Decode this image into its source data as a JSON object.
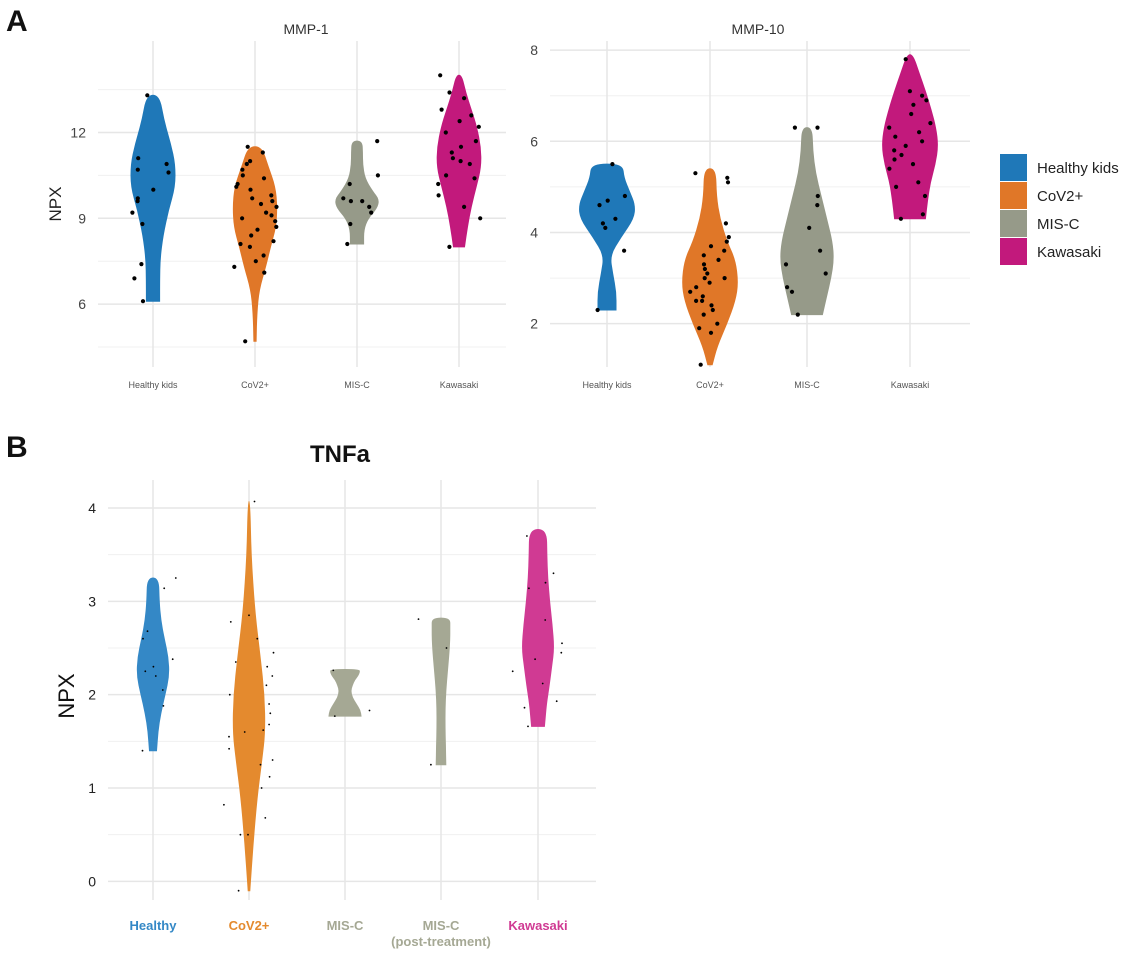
{
  "colors": {
    "healthy": "#1f78b8",
    "covid": "#e07728",
    "misc": "#969a89",
    "kawasaki": "#c2197c",
    "healthy_b": "#3488c6",
    "covid_b": "#e48a2e",
    "misc_b": "#a5a894",
    "kawasaki_b": "#d03a93"
  },
  "panels": {
    "a": "A",
    "b": "B"
  },
  "legend": {
    "entries": [
      {
        "label": "Healthy kids",
        "color_key": "healthy"
      },
      {
        "label": "CoV2+",
        "color_key": "covid"
      },
      {
        "label": "MIS-C",
        "color_key": "misc"
      },
      {
        "label": "Kawasaki",
        "color_key": "kawasaki"
      }
    ]
  },
  "chart_data": [
    {
      "id": "mmp1",
      "type": "violin",
      "title": "MMP-1",
      "ylabel": "NPX",
      "xlabel": "",
      "ylim": [
        3.8,
        15.2
      ],
      "yticks": [
        6,
        9,
        12
      ],
      "grid": true,
      "categories": [
        "Healthy kids",
        "CoV2+",
        "MIS-C",
        "Kawasaki"
      ],
      "series": [
        {
          "category": "Healthy kids",
          "color_key": "healthy",
          "range": [
            6.1,
            13.3
          ],
          "density": [
            [
              6.1,
              0.3
            ],
            [
              6.8,
              0.3
            ],
            [
              7.6,
              0.32
            ],
            [
              8.4,
              0.45
            ],
            [
              9.3,
              0.7
            ],
            [
              10.1,
              1.0
            ],
            [
              10.9,
              1.0
            ],
            [
              11.6,
              0.8
            ],
            [
              12.4,
              0.5
            ],
            [
              13.3,
              0.28
            ]
          ],
          "points": [
            6.1,
            6.9,
            7.4,
            8.8,
            9.2,
            9.6,
            9.7,
            10.0,
            10.6,
            10.7,
            10.9,
            11.1,
            13.3
          ]
        },
        {
          "category": "CoV2+",
          "color_key": "covid",
          "range": [
            4.7,
            11.5
          ],
          "density": [
            [
              4.7,
              0.05
            ],
            [
              5.7,
              0.08
            ],
            [
              6.5,
              0.18
            ],
            [
              7.3,
              0.48
            ],
            [
              8.0,
              0.7
            ],
            [
              8.7,
              0.95
            ],
            [
              9.4,
              1.0
            ],
            [
              10.1,
              0.92
            ],
            [
              10.8,
              0.6
            ],
            [
              11.5,
              0.3
            ]
          ],
          "points": [
            4.7,
            7.1,
            7.3,
            7.5,
            7.7,
            8.0,
            8.1,
            8.2,
            8.4,
            8.6,
            8.7,
            8.9,
            9.0,
            9.1,
            9.2,
            9.4,
            9.5,
            9.6,
            9.7,
            9.8,
            10.0,
            10.1,
            10.2,
            10.4,
            10.5,
            10.7,
            10.9,
            11.0,
            11.3,
            11.5
          ]
        },
        {
          "category": "MIS-C",
          "color_key": "misc",
          "range": [
            8.1,
            11.7
          ],
          "density": [
            [
              8.1,
              0.3
            ],
            [
              8.6,
              0.3
            ],
            [
              9.0,
              0.5
            ],
            [
              9.35,
              0.9
            ],
            [
              9.65,
              1.0
            ],
            [
              9.95,
              0.7
            ],
            [
              10.4,
              0.35
            ],
            [
              10.9,
              0.25
            ],
            [
              11.3,
              0.25
            ],
            [
              11.7,
              0.22
            ]
          ],
          "points": [
            8.1,
            8.8,
            9.2,
            9.4,
            9.6,
            9.6,
            9.7,
            10.2,
            10.5,
            11.7
          ]
        },
        {
          "category": "Kawasaki",
          "color_key": "kawasaki",
          "range": [
            8.0,
            14.0
          ],
          "density": [
            [
              8.0,
              0.25
            ],
            [
              8.7,
              0.38
            ],
            [
              9.4,
              0.55
            ],
            [
              10.1,
              0.78
            ],
            [
              10.8,
              1.0
            ],
            [
              11.5,
              0.98
            ],
            [
              12.2,
              0.8
            ],
            [
              12.8,
              0.55
            ],
            [
              13.4,
              0.3
            ],
            [
              14.0,
              0.12
            ]
          ],
          "points": [
            8.0,
            9.0,
            9.4,
            9.8,
            10.2,
            10.4,
            10.5,
            10.9,
            11.0,
            11.1,
            11.3,
            11.5,
            11.7,
            12.0,
            12.2,
            12.4,
            12.6,
            12.8,
            13.2,
            13.4,
            14.0
          ]
        }
      ]
    },
    {
      "id": "mmp10",
      "type": "violin",
      "title": "MMP-10",
      "ylabel": "",
      "xlabel": "",
      "ylim": [
        1.05,
        8.2
      ],
      "yticks": [
        2,
        4,
        6,
        8
      ],
      "grid": true,
      "categories": [
        "Healthy kids",
        "CoV2+",
        "MIS-C",
        "Kawasaki"
      ],
      "series": [
        {
          "category": "Healthy kids",
          "color_key": "healthy",
          "range": [
            2.3,
            5.5
          ],
          "density": [
            [
              2.3,
              0.32
            ],
            [
              2.7,
              0.32
            ],
            [
              3.1,
              0.2
            ],
            [
              3.5,
              0.1
            ],
            [
              3.9,
              0.5
            ],
            [
              4.3,
              0.95
            ],
            [
              4.6,
              1.0
            ],
            [
              4.9,
              0.8
            ],
            [
              5.2,
              0.6
            ],
            [
              5.5,
              0.55
            ]
          ],
          "points": [
            2.3,
            3.6,
            4.1,
            4.2,
            4.3,
            4.6,
            4.7,
            4.8,
            5.5
          ]
        },
        {
          "category": "CoV2+",
          "color_key": "covid",
          "range": [
            1.1,
            5.4
          ],
          "density": [
            [
              1.1,
              0.08
            ],
            [
              1.5,
              0.25
            ],
            [
              2.0,
              0.6
            ],
            [
              2.5,
              0.9
            ],
            [
              2.9,
              1.0
            ],
            [
              3.4,
              0.9
            ],
            [
              3.8,
              0.6
            ],
            [
              4.3,
              0.35
            ],
            [
              4.8,
              0.22
            ],
            [
              5.4,
              0.2
            ]
          ],
          "points": [
            1.1,
            1.8,
            1.9,
            2.0,
            2.2,
            2.3,
            2.4,
            2.5,
            2.5,
            2.6,
            2.7,
            2.8,
            2.9,
            3.0,
            3.0,
            3.1,
            3.2,
            3.3,
            3.4,
            3.5,
            3.6,
            3.7,
            3.8,
            3.9,
            4.2,
            5.1,
            5.2,
            5.3
          ]
        },
        {
          "category": "MIS-C",
          "color_key": "misc",
          "range": [
            2.2,
            6.3
          ],
          "density": [
            [
              2.2,
              0.55
            ],
            [
              2.6,
              0.7
            ],
            [
              3.0,
              0.85
            ],
            [
              3.4,
              0.95
            ],
            [
              3.8,
              0.9
            ],
            [
              4.3,
              0.7
            ],
            [
              4.8,
              0.5
            ],
            [
              5.3,
              0.3
            ],
            [
              5.8,
              0.2
            ],
            [
              6.3,
              0.18
            ]
          ],
          "points": [
            2.2,
            2.7,
            2.8,
            3.1,
            3.3,
            3.6,
            4.1,
            4.6,
            4.8,
            6.3,
            6.3
          ]
        },
        {
          "category": "Kawasaki",
          "color_key": "kawasaki",
          "range": [
            4.3,
            7.9
          ],
          "density": [
            [
              4.3,
              0.55
            ],
            [
              4.7,
              0.62
            ],
            [
              5.1,
              0.72
            ],
            [
              5.5,
              0.9
            ],
            [
              5.9,
              1.0
            ],
            [
              6.3,
              0.92
            ],
            [
              6.7,
              0.75
            ],
            [
              7.1,
              0.55
            ],
            [
              7.5,
              0.32
            ],
            [
              7.9,
              0.1
            ]
          ],
          "points": [
            4.3,
            4.4,
            4.8,
            5.0,
            5.1,
            5.4,
            5.5,
            5.6,
            5.7,
            5.8,
            5.9,
            6.0,
            6.1,
            6.2,
            6.3,
            6.4,
            6.6,
            6.8,
            6.9,
            7.0,
            7.1,
            7.8
          ]
        }
      ]
    },
    {
      "id": "tnfa",
      "type": "violin",
      "title": "TNFa",
      "ylabel": "NPX",
      "xlabel": "",
      "ylim": [
        -0.2,
        4.3
      ],
      "yticks": [
        0,
        1,
        2,
        3,
        4
      ],
      "grid": true,
      "categories": [
        {
          "label": "Healthy",
          "sublabel": ""
        },
        {
          "label": "CoV2+",
          "sublabel": ""
        },
        {
          "label": "MIS-C",
          "sublabel": ""
        },
        {
          "label": "MIS-C",
          "sublabel": "(post-treatment)"
        },
        {
          "label": "Kawasaki",
          "sublabel": ""
        }
      ],
      "series": [
        {
          "category": "Healthy",
          "color_key": "healthy_b",
          "range": [
            1.4,
            3.25
          ],
          "density": [
            [
              1.4,
              0.22
            ],
            [
              1.6,
              0.3
            ],
            [
              1.8,
              0.48
            ],
            [
              2.0,
              0.75
            ],
            [
              2.2,
              1.0
            ],
            [
              2.4,
              0.95
            ],
            [
              2.6,
              0.7
            ],
            [
              2.8,
              0.48
            ],
            [
              3.0,
              0.38
            ],
            [
              3.25,
              0.35
            ]
          ],
          "points": [
            1.4,
            1.88,
            2.05,
            2.2,
            2.25,
            2.3,
            2.38,
            2.6,
            2.68,
            3.14,
            3.25
          ]
        },
        {
          "category": "CoV2+",
          "color_key": "covid_b",
          "range": [
            -0.1,
            4.07
          ],
          "density": [
            [
              -0.1,
              0.05
            ],
            [
              0.4,
              0.25
            ],
            [
              0.9,
              0.5
            ],
            [
              1.3,
              0.8
            ],
            [
              1.6,
              1.0
            ],
            [
              2.0,
              0.95
            ],
            [
              2.4,
              0.7
            ],
            [
              2.9,
              0.35
            ],
            [
              3.5,
              0.12
            ],
            [
              4.07,
              0.05
            ]
          ],
          "points": [
            -0.1,
            0.5,
            0.5,
            0.68,
            0.82,
            1.0,
            1.12,
            1.25,
            1.3,
            1.42,
            1.55,
            1.6,
            1.62,
            1.68,
            1.8,
            1.9,
            2.0,
            2.1,
            2.2,
            2.3,
            2.35,
            2.45,
            2.6,
            2.78,
            2.85,
            4.07
          ]
        },
        {
          "category": "MIS-C",
          "color_key": "misc_b",
          "range": [
            1.77,
            2.27
          ],
          "density": [
            [
              1.77,
              1.0
            ],
            [
              1.83,
              0.95
            ],
            [
              1.9,
              0.7
            ],
            [
              1.97,
              0.45
            ],
            [
              2.04,
              0.35
            ],
            [
              2.1,
              0.45
            ],
            [
              2.16,
              0.6
            ],
            [
              2.2,
              0.8
            ],
            [
              2.24,
              0.9
            ],
            [
              2.27,
              0.9
            ]
          ],
          "points": [
            1.77,
            1.83,
            2.26
          ]
        },
        {
          "category": "MIS-C (post-treatment)",
          "color_key": "misc_b",
          "range": [
            1.25,
            2.82
          ],
          "density": [
            [
              1.25,
              0.3
            ],
            [
              1.45,
              0.28
            ],
            [
              1.65,
              0.25
            ],
            [
              1.85,
              0.25
            ],
            [
              2.05,
              0.3
            ],
            [
              2.25,
              0.4
            ],
            [
              2.45,
              0.5
            ],
            [
              2.6,
              0.55
            ],
            [
              2.72,
              0.55
            ],
            [
              2.82,
              0.55
            ]
          ],
          "points": [
            1.25,
            2.5,
            2.81
          ]
        },
        {
          "category": "Kawasaki",
          "color_key": "kawasaki_b",
          "range": [
            1.66,
            3.77
          ],
          "density": [
            [
              1.66,
              0.4
            ],
            [
              1.9,
              0.52
            ],
            [
              2.1,
              0.7
            ],
            [
              2.3,
              0.85
            ],
            [
              2.5,
              1.0
            ],
            [
              2.75,
              0.88
            ],
            [
              3.0,
              0.72
            ],
            [
              3.25,
              0.6
            ],
            [
              3.5,
              0.55
            ],
            [
              3.77,
              0.52
            ]
          ],
          "points": [
            1.66,
            1.86,
            1.93,
            2.12,
            2.25,
            2.38,
            2.45,
            2.55,
            2.8,
            3.14,
            3.2,
            3.3,
            3.7
          ]
        }
      ]
    }
  ]
}
